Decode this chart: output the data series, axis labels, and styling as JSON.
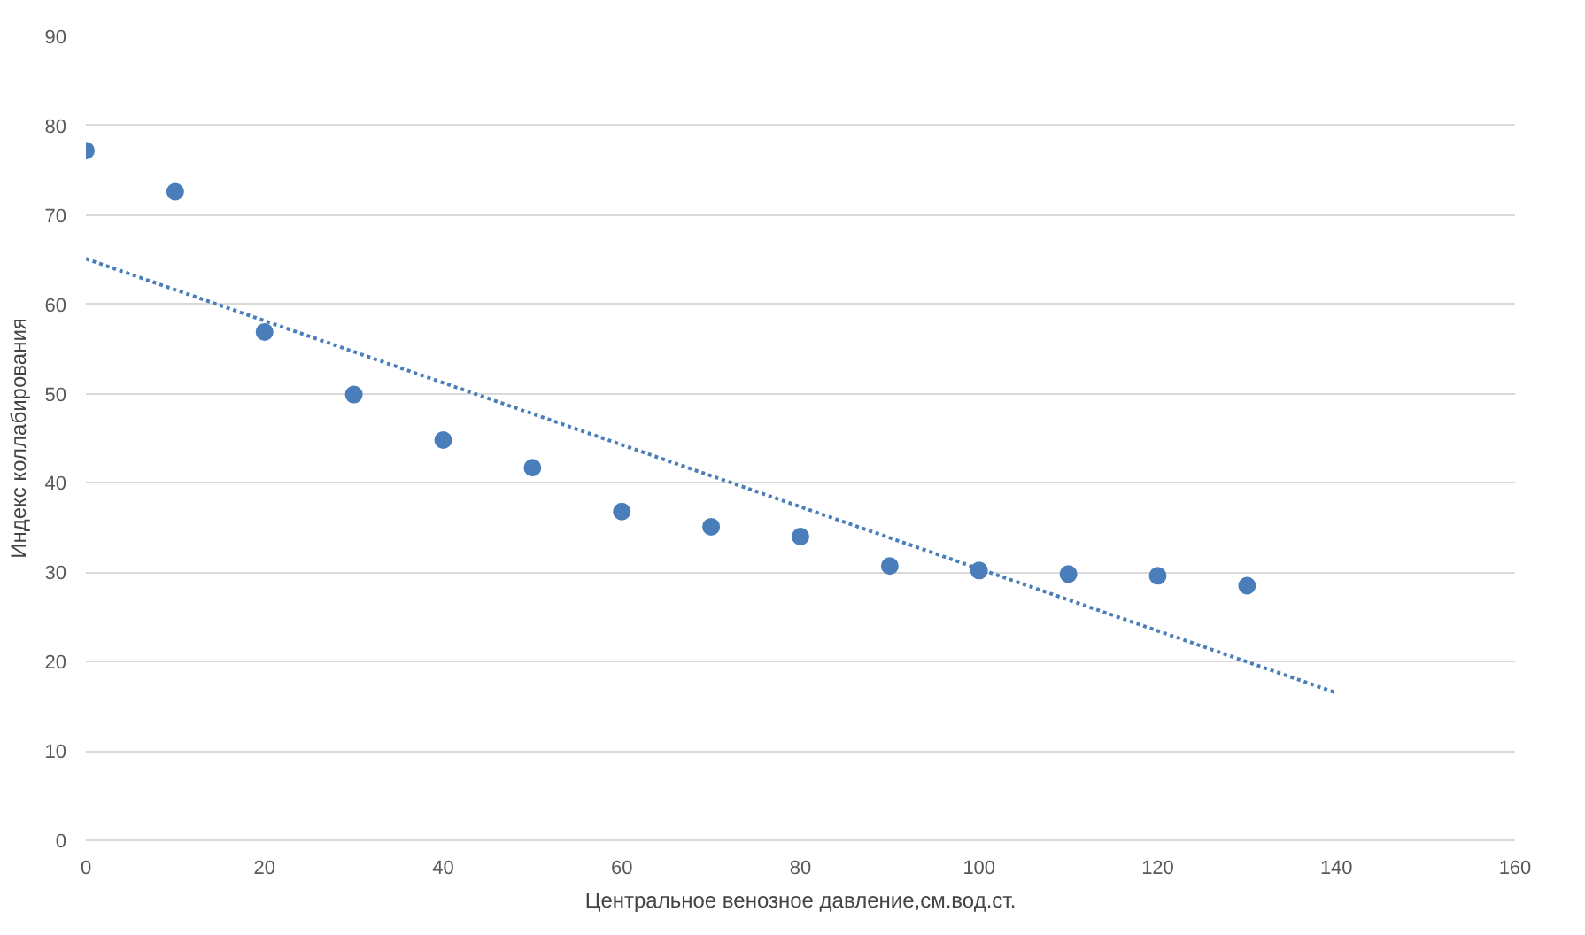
{
  "chart_data": {
    "type": "scatter",
    "xlabel": "Центральное венозное давление,см.вод.ст.",
    "ylabel": "Индекс коллабирования",
    "xlim": [
      0,
      160
    ],
    "xticks": [
      0,
      20,
      40,
      60,
      80,
      100,
      120,
      140,
      160
    ],
    "ylim": [
      0,
      90
    ],
    "yticks": [
      0,
      10,
      20,
      30,
      40,
      50,
      60,
      70,
      80,
      90
    ],
    "grid": "y",
    "series": [
      {
        "marker": "circle",
        "color": "#4a7ebb",
        "x": [
          0,
          10,
          20,
          30,
          40,
          50,
          60,
          70,
          80,
          90,
          100,
          110,
          120,
          130
        ],
        "values": [
          77.2,
          72.6,
          56.9,
          49.9,
          44.8,
          41.7,
          36.8,
          35.1,
          34.0,
          30.7,
          30.2,
          29.8,
          29.6,
          28.5
        ]
      },
      {
        "type": "line",
        "marker": "none",
        "line_style": "dotted",
        "color": "#4a7ebb",
        "x": [
          0,
          140
        ],
        "values": [
          65.1,
          16.5
        ]
      }
    ]
  }
}
